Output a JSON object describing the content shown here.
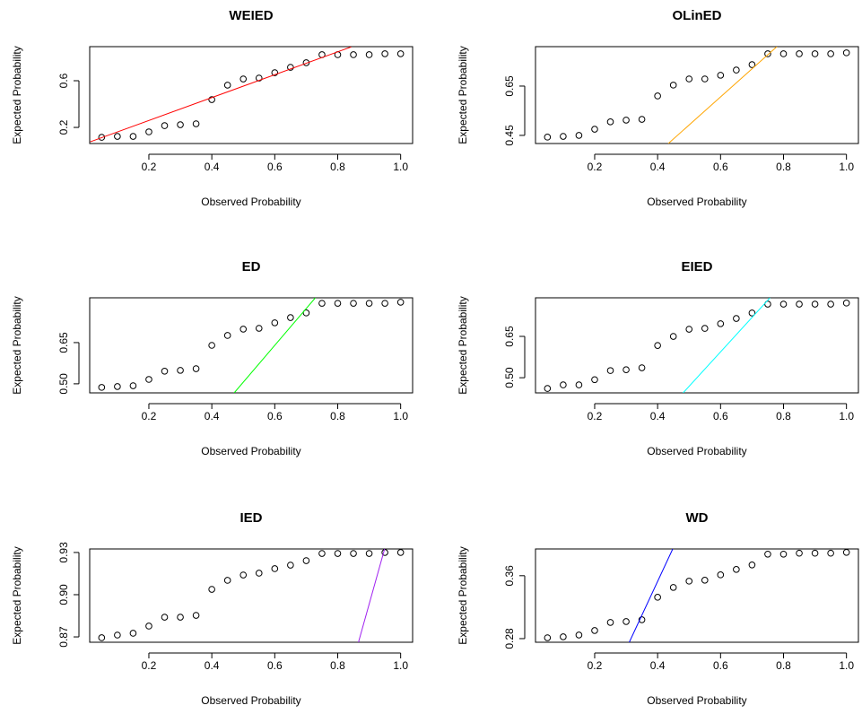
{
  "chart_data": [
    {
      "type": "scatter",
      "title": "WEIED",
      "x_label": "Observed Probability",
      "y_label": "Expected Probability",
      "color": "#000000",
      "x": [
        0.05,
        0.1,
        0.15,
        0.2,
        0.25,
        0.3,
        0.35,
        0.4,
        0.45,
        0.5,
        0.55,
        0.6,
        0.65,
        0.7,
        0.75,
        0.8,
        0.85,
        0.9,
        0.95,
        1.0
      ],
      "values": [
        0.115,
        0.123,
        0.123,
        0.162,
        0.215,
        0.223,
        0.231,
        0.438,
        0.562,
        0.615,
        0.623,
        0.669,
        0.715,
        0.754,
        0.823,
        0.823,
        0.823,
        0.823,
        0.831,
        0.831
      ],
      "line": {
        "color": "#ff0000",
        "x": [
          0.014,
          0.843
        ],
        "values": [
          0.077,
          0.89
        ]
      },
      "xlim": [
        0.012,
        1.038
      ],
      "ylim": [
        0.062,
        0.892
      ],
      "xticks": [
        0.2,
        0.4,
        0.6,
        0.8,
        {
          "value": 1.0,
          "label": "1.0"
        }
      ],
      "yticks": [
        0.2,
        0.6
      ]
    },
    {
      "type": "scatter",
      "title": "OLinED",
      "x_label": "Observed Probability",
      "y_label": "Expected Probability",
      "color": "#000000",
      "x": [
        0.05,
        0.1,
        0.15,
        0.2,
        0.25,
        0.3,
        0.35,
        0.4,
        0.45,
        0.5,
        0.55,
        0.6,
        0.65,
        0.7,
        0.75,
        0.8,
        0.85,
        0.9,
        0.95,
        1.0
      ],
      "values": [
        0.443,
        0.446,
        0.45,
        0.475,
        0.505,
        0.512,
        0.515,
        0.61,
        0.654,
        0.679,
        0.679,
        0.694,
        0.715,
        0.737,
        0.781,
        0.781,
        0.781,
        0.781,
        0.781,
        0.785
      ],
      "line": {
        "color": "#ffa500",
        "x": [
          0.434,
          0.779
        ],
        "values": [
          0.417,
          0.81
        ]
      },
      "xlim": [
        0.012,
        1.038
      ],
      "ylim": [
        0.417,
        0.81
      ],
      "xticks": [
        0.2,
        0.4,
        0.6,
        0.8,
        {
          "value": 1.0,
          "label": "1.0"
        }
      ],
      "yticks": [
        0.45,
        0.65
      ]
    },
    {
      "type": "scatter",
      "title": "ED",
      "x_label": "Observed Probability",
      "y_label": "Expected Probability",
      "color": "#000000",
      "x": [
        0.05,
        0.1,
        0.15,
        0.2,
        0.25,
        0.3,
        0.35,
        0.4,
        0.45,
        0.5,
        0.55,
        0.6,
        0.65,
        0.7,
        0.75,
        0.8,
        0.85,
        0.9,
        0.95,
        1.0
      ],
      "values": [
        0.487,
        0.49,
        0.493,
        0.516,
        0.546,
        0.549,
        0.555,
        0.64,
        0.676,
        0.699,
        0.702,
        0.722,
        0.741,
        0.758,
        0.793,
        0.793,
        0.793,
        0.793,
        0.793,
        0.797
      ],
      "line": {
        "color": "#00ff00",
        "x": [
          0.471,
          0.729
        ],
        "values": [
          0.467,
          0.813
        ]
      },
      "xlim": [
        0.012,
        1.038
      ],
      "ylim": [
        0.467,
        0.813
      ],
      "xticks": [
        0.2,
        0.4,
        0.6,
        0.8,
        {
          "value": 1.0,
          "label": "1.0"
        }
      ],
      "yticks": [
        {
          "value": 0.5,
          "label": "0.50"
        },
        0.65
      ]
    },
    {
      "type": "scatter",
      "title": "EIED",
      "x_label": "Observed Probability",
      "y_label": "Expected Probability",
      "color": "#000000",
      "x": [
        0.05,
        0.1,
        0.15,
        0.2,
        0.25,
        0.3,
        0.35,
        0.4,
        0.45,
        0.5,
        0.55,
        0.6,
        0.65,
        0.7,
        0.75,
        0.8,
        0.85,
        0.9,
        0.95,
        1.0
      ],
      "values": [
        0.461,
        0.474,
        0.474,
        0.493,
        0.526,
        0.529,
        0.536,
        0.617,
        0.65,
        0.676,
        0.679,
        0.696,
        0.715,
        0.735,
        0.767,
        0.767,
        0.767,
        0.767,
        0.767,
        0.771
      ],
      "line": {
        "color": "#00ffff",
        "x": [
          0.481,
          0.757
        ],
        "values": [
          0.445,
          0.79
        ]
      },
      "xlim": [
        0.012,
        1.038
      ],
      "ylim": [
        0.445,
        0.79
      ],
      "xticks": [
        0.2,
        0.4,
        0.6,
        0.8,
        {
          "value": 1.0,
          "label": "1.0"
        }
      ],
      "yticks": [
        {
          "value": 0.5,
          "label": "0.50"
        },
        0.65
      ]
    },
    {
      "type": "scatter",
      "title": "IED",
      "x_label": "Observed Probability",
      "y_label": "Expected Probability",
      "color": "#000000",
      "x": [
        0.05,
        0.1,
        0.15,
        0.2,
        0.25,
        0.3,
        0.35,
        0.4,
        0.45,
        0.5,
        0.55,
        0.6,
        0.65,
        0.7,
        0.75,
        0.8,
        0.85,
        0.9,
        0.95,
        1.0
      ],
      "values": [
        0.8694,
        0.8713,
        0.8726,
        0.8777,
        0.884,
        0.884,
        0.8853,
        0.9038,
        0.9102,
        0.914,
        0.9153,
        0.9185,
        0.921,
        0.9242,
        0.9293,
        0.9293,
        0.9293,
        0.9293,
        0.93,
        0.93
      ],
      "line": {
        "color": "#a020f0",
        "x": [
          0.866,
          0.949
        ],
        "values": [
          0.8662,
          0.9325
        ]
      },
      "xlim": [
        0.012,
        1.038
      ],
      "ylim": [
        0.8662,
        0.9325
      ],
      "xticks": [
        0.2,
        0.4,
        0.6,
        0.8,
        {
          "value": 1.0,
          "label": "1.0"
        }
      ],
      "yticks": [
        0.87,
        {
          "value": 0.9,
          "label": "0.90"
        },
        0.93
      ]
    },
    {
      "type": "scatter",
      "title": "WD",
      "x_label": "Observed Probability",
      "y_label": "Expected Probability",
      "color": "#000000",
      "x": [
        0.05,
        0.1,
        0.15,
        0.2,
        0.25,
        0.3,
        0.35,
        0.4,
        0.45,
        0.5,
        0.55,
        0.6,
        0.65,
        0.7,
        0.75,
        0.8,
        0.85,
        0.9,
        0.95,
        1.0
      ],
      "values": [
        0.2811,
        0.2823,
        0.2846,
        0.2903,
        0.3006,
        0.3017,
        0.304,
        0.3326,
        0.3451,
        0.3531,
        0.3543,
        0.3611,
        0.368,
        0.3737,
        0.3874,
        0.3874,
        0.3886,
        0.3886,
        0.3886,
        0.3897
      ],
      "line": {
        "color": "#0000ff",
        "x": [
          0.31,
          0.448
        ],
        "values": [
          0.2754,
          0.394
        ]
      },
      "xlim": [
        0.012,
        1.038
      ],
      "ylim": [
        0.2754,
        0.394
      ],
      "xticks": [
        0.2,
        0.4,
        0.6,
        0.8,
        {
          "value": 1.0,
          "label": "1.0"
        }
      ],
      "yticks": [
        0.28,
        0.36
      ]
    }
  ]
}
